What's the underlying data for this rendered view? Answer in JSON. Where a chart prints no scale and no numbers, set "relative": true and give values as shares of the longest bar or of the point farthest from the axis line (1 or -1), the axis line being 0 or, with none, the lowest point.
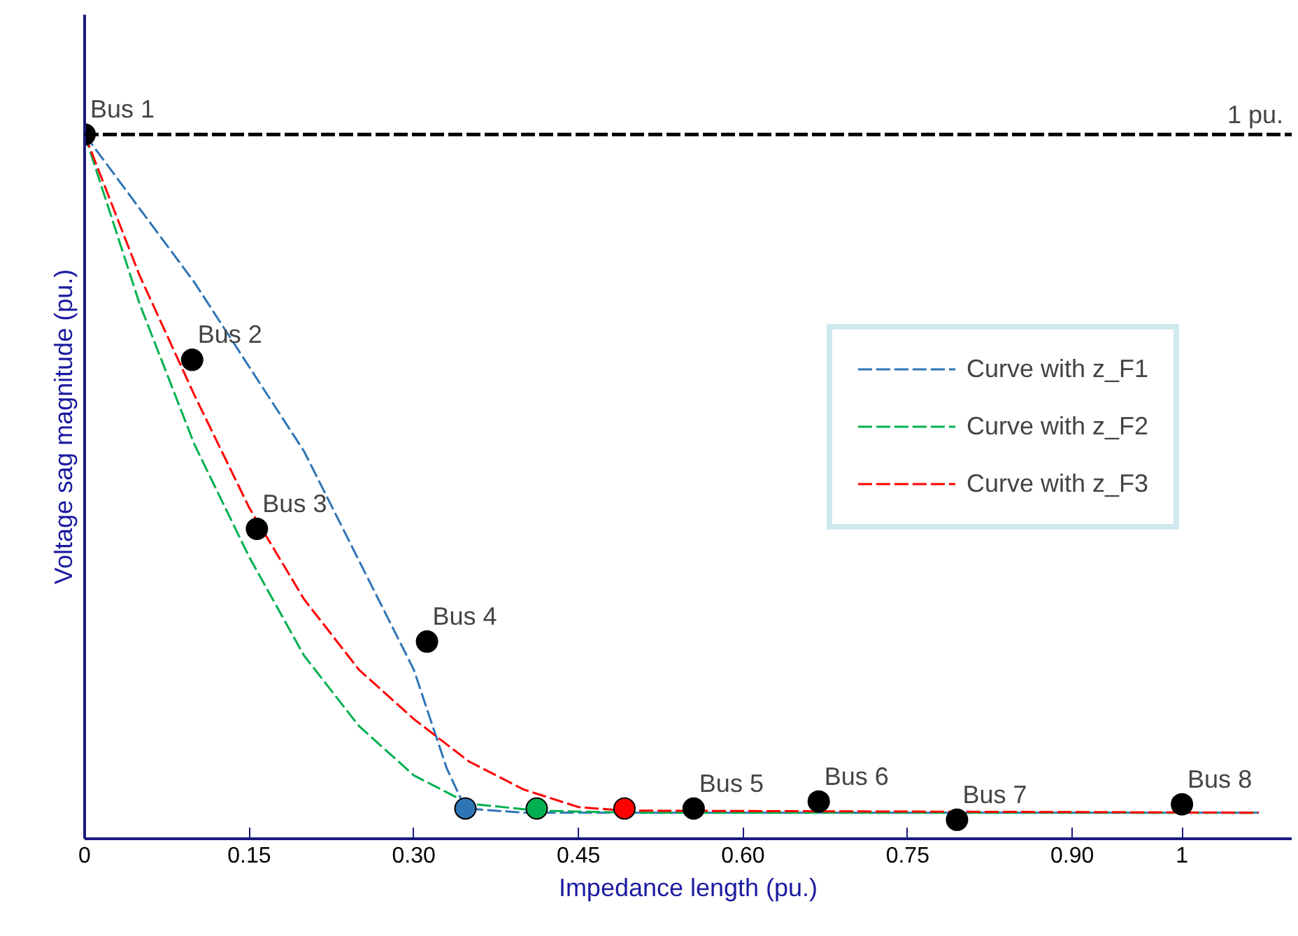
{
  "chart_data": {
    "type": "line",
    "relative": true,
    "xlabel": "Impedance length (pu.)",
    "ylabel": "Voltage sag magnitude (pu.)",
    "xlim": [
      0,
      1.1
    ],
    "xticks": [
      0,
      {
        "value": 0.15,
        "label": "0.15"
      },
      {
        "value": 0.3,
        "label": "0.30"
      },
      {
        "value": 0.45,
        "label": "0.45"
      },
      {
        "value": 0.6,
        "label": "0.60"
      },
      {
        "value": 0.75,
        "label": "0.75"
      },
      {
        "value": 0.9,
        "label": "0.90"
      },
      1
    ],
    "grid": false,
    "legend": "right",
    "series": [
      {
        "name": "Curve with z_F1",
        "color": "#2e75b6",
        "line_style": "dashed",
        "marker": "none",
        "x": [
          0,
          0.1,
          0.2,
          0.3,
          0.33,
          0.347,
          0.4,
          1.07
        ],
        "values": [
          1,
          0.79,
          0.55,
          0.24,
          0.1,
          0.043,
          0.037,
          0.037
        ]
      },
      {
        "name": "Curve with z_F2",
        "color": "#00b050",
        "line_style": "dashed",
        "marker": "none",
        "x": [
          0,
          0.05,
          0.1,
          0.15,
          0.2,
          0.25,
          0.3,
          0.35,
          0.412,
          0.5,
          1.07
        ],
        "values": [
          1,
          0.76,
          0.56,
          0.4,
          0.26,
          0.16,
          0.09,
          0.05,
          0.04,
          0.037,
          0.037
        ]
      },
      {
        "name": "Curve with z_F3",
        "color": "#ff0000",
        "line_style": "dashed",
        "marker": "none",
        "x": [
          0,
          0.05,
          0.1,
          0.15,
          0.2,
          0.25,
          0.3,
          0.35,
          0.4,
          0.45,
          0.492,
          1.07
        ],
        "values": [
          1,
          0.8,
          0.63,
          0.47,
          0.34,
          0.24,
          0.17,
          0.11,
          0.07,
          0.045,
          0.04,
          0.037
        ]
      },
      {
        "type": "scatter",
        "color": "#000000",
        "marker": "circle",
        "x": [
          0,
          0.098,
          0.157,
          0.312,
          0.555,
          0.669,
          0.795,
          1
        ],
        "values": [
          1,
          0.68,
          0.44,
          0.28,
          0.043,
          0.053,
          0.027,
          0.049
        ]
      },
      {
        "type": "scatter",
        "color": "#2e75b6",
        "marker": "circle",
        "x": [
          0.347
        ],
        "values": [
          0.043
        ]
      },
      {
        "type": "scatter",
        "color": "#00b050",
        "marker": "circle",
        "x": [
          0.412
        ],
        "values": [
          0.043
        ]
      },
      {
        "type": "scatter",
        "color": "#ff0000",
        "marker": "circle",
        "x": [
          0.492
        ],
        "values": [
          0.043
        ]
      }
    ],
    "annotations": [
      {
        "text": "Bus 1",
        "x": 0,
        "y": 1
      },
      {
        "text": "Bus 2",
        "x": 0.098,
        "y": 0.68
      },
      {
        "text": "Bus 3",
        "x": 0.157,
        "y": 0.44
      },
      {
        "text": "Bus 4",
        "x": 0.312,
        "y": 0.28
      },
      {
        "text": "Bus 5",
        "x": 0.555,
        "y": 0.043
      },
      {
        "text": "Bus 6",
        "x": 0.669,
        "y": 0.053
      },
      {
        "text": "Bus 7",
        "x": 0.795,
        "y": 0.027
      },
      {
        "text": "Bus 8",
        "x": 1,
        "y": 0.049
      }
    ],
    "ref_lines": [
      {
        "axis": "y",
        "value": 1,
        "label": "1 pu.",
        "color": "#000000",
        "line_style": "dashed"
      }
    ]
  }
}
